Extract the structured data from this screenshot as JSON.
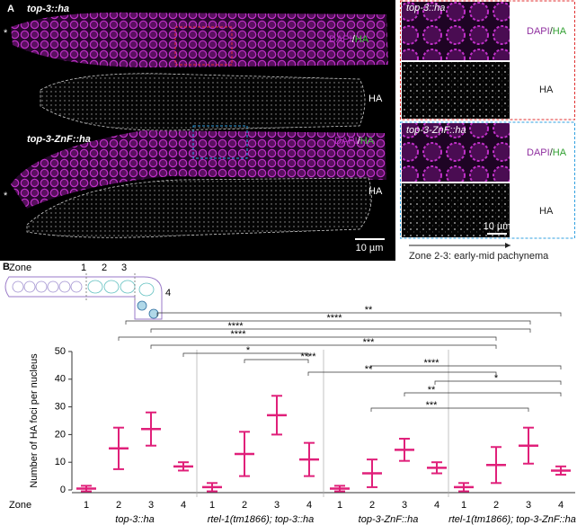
{
  "panel_a": {
    "label": "A",
    "images": [
      {
        "genotype": "top-3::ha",
        "merge": [
          "DAPI",
          "/",
          "HA"
        ],
        "ha": "HA",
        "star": "*"
      },
      {
        "genotype": "top-3-ZnF::ha",
        "merge": [
          "DAPI",
          "/",
          "HA"
        ],
        "ha": "HA",
        "star": "*"
      }
    ],
    "scale_bar": "10 µm",
    "insets": [
      {
        "genotype": "top-3::ha",
        "merge": [
          "DAPI",
          "/",
          "HA"
        ],
        "ha": "HA"
      },
      {
        "genotype": "top-3-ZnF::ha",
        "merge": [
          "DAPI",
          "/",
          "HA"
        ],
        "ha": "HA"
      }
    ],
    "inset_scale_bar": "10 µm",
    "caption": "Zone 2-3: early-mid pachynema"
  },
  "panel_b": {
    "label": "B",
    "schematic": {
      "zone_title": "Zone",
      "zones": [
        "1",
        "2",
        "3",
        "4"
      ]
    }
  },
  "chart_data": {
    "type": "dot",
    "y_label": "Number of HA foci per nucleus",
    "x_title": "Zone",
    "color": "#e0207a",
    "ylim": [
      0,
      50
    ],
    "yticks": [
      0,
      10,
      20,
      30,
      40,
      50
    ],
    "groups": [
      {
        "name": "top-3::ha",
        "zones": [
          "1",
          "2",
          "3",
          "4"
        ],
        "mean": [
          0.5,
          15,
          22,
          8.5
        ],
        "sd": [
          1,
          7.5,
          6,
          1.5
        ]
      },
      {
        "name": "rtel-1(tm1866); top-3::ha",
        "zones": [
          "1",
          "2",
          "3",
          "4"
        ],
        "mean": [
          1,
          13,
          27,
          11
        ],
        "sd": [
          1.5,
          8,
          7,
          6
        ]
      },
      {
        "name": "top-3-ZnF::ha",
        "zones": [
          "1",
          "2",
          "3",
          "4"
        ],
        "mean": [
          0.5,
          6,
          14.5,
          8
        ],
        "sd": [
          1,
          5,
          4,
          2
        ]
      },
      {
        "name": "rtel-1(tm1866); top-3-ZnF::ha",
        "zones": [
          "1",
          "2",
          "3",
          "4"
        ],
        "mean": [
          1,
          9,
          16,
          7
        ],
        "sd": [
          1.5,
          6.5,
          6.5,
          1.5
        ]
      }
    ],
    "significance": [
      "**",
      "****",
      "****",
      "****",
      "***",
      "*",
      "****",
      "**",
      "****",
      "*",
      "**",
      "***"
    ]
  }
}
